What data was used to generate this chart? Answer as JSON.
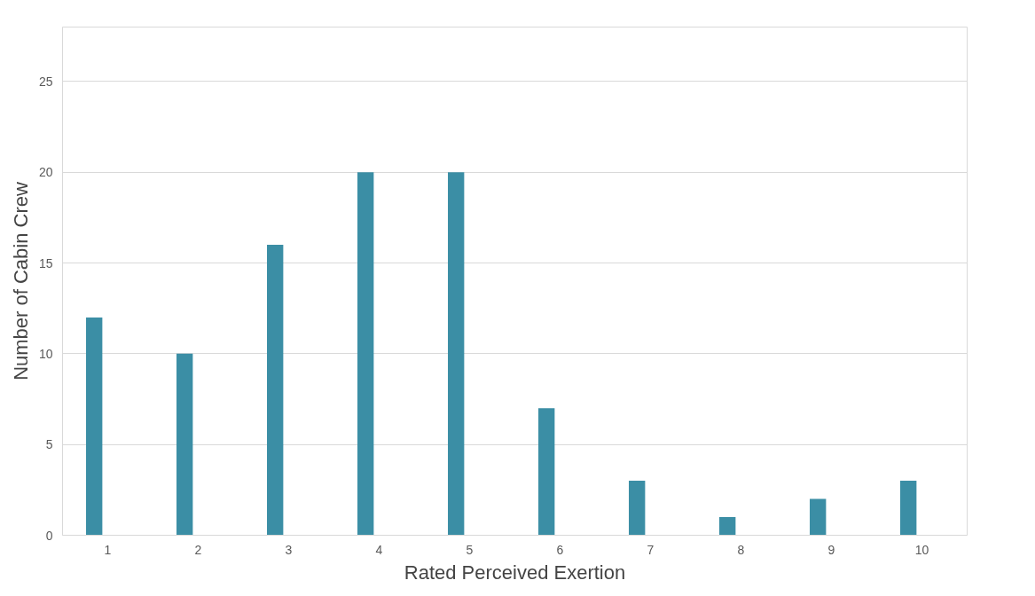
{
  "chart_data": {
    "type": "bar",
    "xlabel": "Rated Perceived Exertion",
    "ylabel": "Number of Cabin Crew",
    "categories": [
      "1",
      "2",
      "3",
      "4",
      "5",
      "6",
      "7",
      "8",
      "9",
      "10"
    ],
    "values": [
      12,
      10,
      16,
      20,
      20,
      7,
      3,
      1,
      2,
      3
    ],
    "color": "#3b8ea5",
    "ylim": [
      0,
      28
    ],
    "yticks": [
      0,
      5,
      10,
      15,
      20,
      25
    ],
    "grid": "y"
  }
}
